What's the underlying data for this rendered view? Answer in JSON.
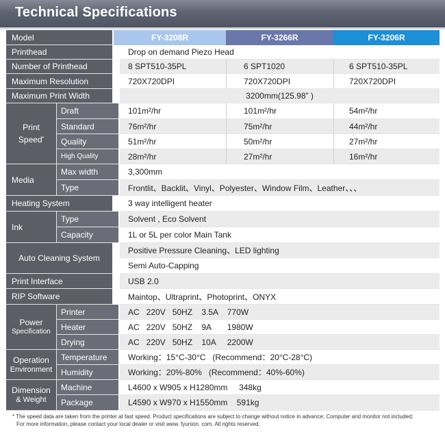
{
  "header": {
    "title": "Technical Specifications"
  },
  "colors": {
    "header_bg": "#5b5f6d",
    "col1": "#a9c7ec",
    "col2": "#6a77aa",
    "col3": "#1c8fd6",
    "label_bg": "#5b5e67"
  },
  "table": {
    "model_label": "Model",
    "models": [
      "FY-3208R",
      "FY-3266R",
      "FY-3206R"
    ],
    "printhead": {
      "label": "Printhead",
      "value": "Drop on demand  Piezo Head"
    },
    "num_printhead": {
      "label": "Number of Printhead",
      "values": [
        "8  SPT510-35PL",
        "6  SPT1020",
        "6  SPT510-35PL"
      ]
    },
    "max_resolution": {
      "label": "Maximum Resolution",
      "values": [
        "720X720DPI",
        "720X720DPI",
        "720X720DPI"
      ]
    },
    "max_print_width": {
      "label": "Maximum Print  Width",
      "value": "3200mm(125.98” )"
    },
    "print_speed": {
      "label_line1": "Print",
      "label_line2": "Speed",
      "rows": [
        {
          "mode": "Draft",
          "values": [
            "101m²/hr",
            "101m²/hr",
            "54m²/hr"
          ]
        },
        {
          "mode": "Standard",
          "values": [
            "76m²/hr",
            "75m²/hr",
            "44m²/hr"
          ]
        },
        {
          "mode": "Quality",
          "values": [
            "51m²/hr",
            "50m²/hr",
            "27m²/hr"
          ]
        },
        {
          "mode": "High Quality",
          "values": [
            "28m²/hr",
            "27m²/hr",
            "16m²/hr"
          ]
        }
      ]
    },
    "media": {
      "label": "Media",
      "max_width_label": "Max  width",
      "max_width_value": "3,300mm",
      "type_label": "Type",
      "type_value": "Frontlit、Backlit、Vinyl、Polyester、Window  Film、Leather、、、"
    },
    "heating": {
      "label": "Heating System",
      "value": "3  way  intelligent  heater"
    },
    "ink": {
      "label": "Ink",
      "type_label": "Type",
      "type_value": "Solvent , Eco Solvent",
      "capacity_label": "Capacity",
      "capacity_value": "1L  or  5L  per  color  Main  Tank"
    },
    "auto_cleaning": {
      "label": "Auto Cleaning System",
      "value1": "Positive  Pressure  Cleaning、LED  lighting",
      "value2": "Semi  Auto-Capping"
    },
    "print_interface": {
      "label": "Print  Interface",
      "value": "USB 2.0"
    },
    "rip": {
      "label": "RIP Software",
      "value": "Maintop、Ultraprint、Photoprint、ONYX"
    },
    "power": {
      "label_line1": "Power",
      "label_line2": "Specification",
      "printer_label": "Printer",
      "printer_value": "AC   220V   50HZ    3.5A    770W",
      "heater_label": "Heater",
      "heater_value": "AC   220V   50HZ    9A       1980W",
      "drying_label": "Drying",
      "drying_value": "AC   220V   50HZ    10A     2200W"
    },
    "operation": {
      "label_line1": "Operation",
      "label_line2": "Environment",
      "temp_label": "Temperature",
      "temp_value": "Working：15°C-30°C   (Recommend：20°C-28°C)",
      "humidity_label": "Humidity",
      "humidity_value": "Working：20%-80%   (Recommend：40%-60%)"
    },
    "dimension": {
      "label_line1": "Dimension",
      "label_line2": "& Weight",
      "machine_label": "Machine",
      "machine_value": "L4600 x W905 x H1280mm     348kg",
      "package_label": "Package",
      "package_value": "L4590 x W970 x H1550mm    591kg"
    }
  },
  "footnote": {
    "line1": "* The speed data are taken from the printer at fast speed. Product specifications are subject to change without notice in advance; Computer  and monitor not included;",
    "line2": "For more information, please contact your local dealer or visit  www. fyunion. com.  All rights reserved."
  }
}
